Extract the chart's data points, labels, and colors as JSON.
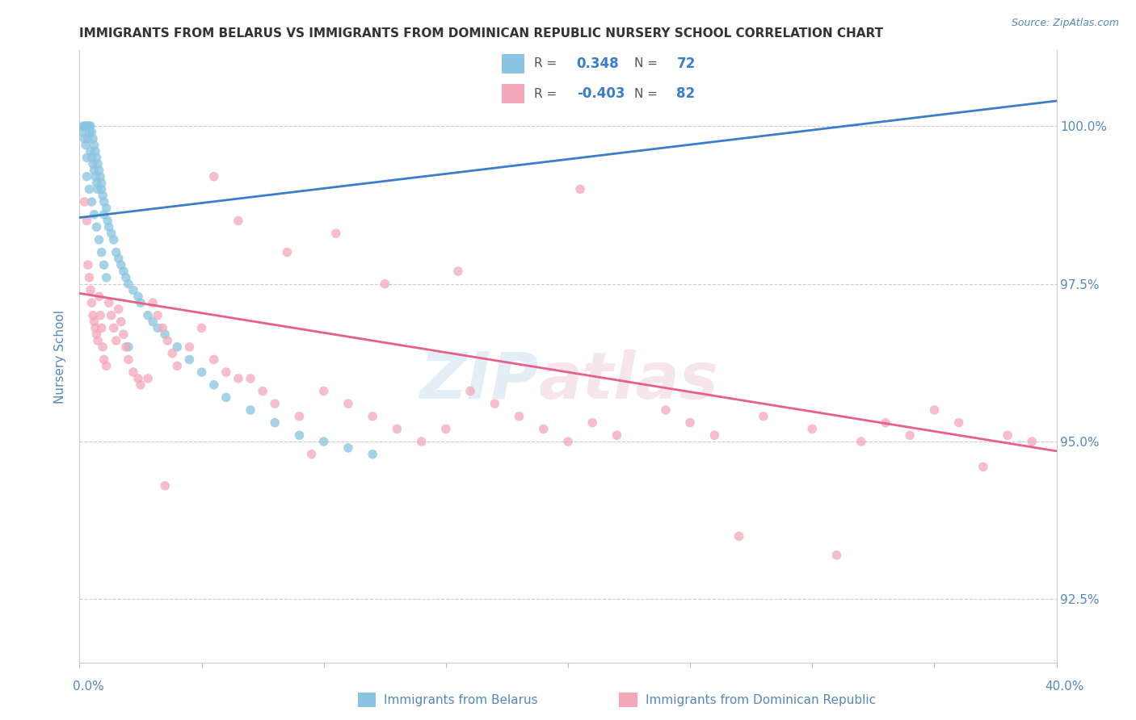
{
  "title": "IMMIGRANTS FROM BELARUS VS IMMIGRANTS FROM DOMINICAN REPUBLIC NURSERY SCHOOL CORRELATION CHART",
  "source": "Source: ZipAtlas.com",
  "ylabel": "Nursery School",
  "yticks": [
    92.5,
    95.0,
    97.5,
    100.0
  ],
  "ytick_labels": [
    "92.5%",
    "95.0%",
    "97.5%",
    "100.0%"
  ],
  "xmin": 0.0,
  "xmax": 40.0,
  "ymin": 91.5,
  "ymax": 101.2,
  "legend_blue_r": "0.348",
  "legend_blue_n": "72",
  "legend_pink_r": "-0.403",
  "legend_pink_n": "82",
  "blue_color": "#89c4e1",
  "pink_color": "#f4a7b9",
  "blue_line_color": "#3a7dc9",
  "pink_line_color": "#e8608a",
  "tick_label_color": "#5588bb",
  "source_color": "#5588bb",
  "axis_label_color": "#5588bb",
  "blue_line_x0": 0.0,
  "blue_line_y0": 98.55,
  "blue_line_x1": 40.0,
  "blue_line_y1": 100.4,
  "pink_line_x0": 0.0,
  "pink_line_y0": 97.35,
  "pink_line_x1": 40.0,
  "pink_line_y1": 94.85,
  "blue_scatter_x": [
    0.1,
    0.15,
    0.2,
    0.2,
    0.25,
    0.25,
    0.3,
    0.3,
    0.35,
    0.35,
    0.4,
    0.4,
    0.45,
    0.45,
    0.5,
    0.5,
    0.55,
    0.55,
    0.6,
    0.6,
    0.65,
    0.65,
    0.7,
    0.7,
    0.75,
    0.75,
    0.8,
    0.85,
    0.9,
    0.9,
    0.95,
    1.0,
    1.0,
    1.1,
    1.15,
    1.2,
    1.3,
    1.4,
    1.5,
    1.6,
    1.7,
    1.8,
    1.9,
    2.0,
    2.2,
    2.4,
    2.5,
    2.8,
    3.0,
    3.2,
    3.5,
    4.0,
    4.5,
    5.0,
    5.5,
    6.0,
    7.0,
    8.0,
    9.0,
    10.0,
    11.0,
    12.0,
    0.3,
    0.4,
    0.5,
    0.6,
    0.7,
    0.8,
    0.9,
    1.0,
    1.1,
    2.0
  ],
  "blue_scatter_y": [
    99.9,
    100.0,
    100.0,
    99.8,
    100.0,
    99.7,
    100.0,
    99.5,
    100.0,
    99.8,
    100.0,
    99.9,
    100.0,
    99.6,
    99.9,
    99.5,
    99.8,
    99.4,
    99.7,
    99.3,
    99.6,
    99.2,
    99.5,
    99.1,
    99.4,
    99.0,
    99.3,
    99.2,
    99.1,
    99.0,
    98.9,
    98.8,
    98.6,
    98.7,
    98.5,
    98.4,
    98.3,
    98.2,
    98.0,
    97.9,
    97.8,
    97.7,
    97.6,
    97.5,
    97.4,
    97.3,
    97.2,
    97.0,
    96.9,
    96.8,
    96.7,
    96.5,
    96.3,
    96.1,
    95.9,
    95.7,
    95.5,
    95.3,
    95.1,
    95.0,
    94.9,
    94.8,
    99.2,
    99.0,
    98.8,
    98.6,
    98.4,
    98.2,
    98.0,
    97.8,
    97.6,
    96.5
  ],
  "pink_scatter_x": [
    0.2,
    0.3,
    0.35,
    0.4,
    0.45,
    0.5,
    0.55,
    0.6,
    0.65,
    0.7,
    0.75,
    0.8,
    0.85,
    0.9,
    0.95,
    1.0,
    1.1,
    1.2,
    1.3,
    1.4,
    1.5,
    1.6,
    1.7,
    1.8,
    1.9,
    2.0,
    2.2,
    2.4,
    2.5,
    2.8,
    3.0,
    3.2,
    3.4,
    3.6,
    3.8,
    4.0,
    4.5,
    5.0,
    5.5,
    6.0,
    6.5,
    7.0,
    7.5,
    8.0,
    9.0,
    10.0,
    11.0,
    12.0,
    13.0,
    14.0,
    15.0,
    16.0,
    17.0,
    18.0,
    19.0,
    20.0,
    21.0,
    22.0,
    24.0,
    25.0,
    26.0,
    28.0,
    30.0,
    32.0,
    33.0,
    34.0,
    35.0,
    36.0,
    38.0,
    39.0,
    5.5,
    6.5,
    8.5,
    10.5,
    12.5,
    15.5,
    20.5,
    27.0,
    31.0,
    37.0,
    3.5,
    9.5
  ],
  "pink_scatter_y": [
    98.8,
    98.5,
    97.8,
    97.6,
    97.4,
    97.2,
    97.0,
    96.9,
    96.8,
    96.7,
    96.6,
    97.3,
    97.0,
    96.8,
    96.5,
    96.3,
    96.2,
    97.2,
    97.0,
    96.8,
    96.6,
    97.1,
    96.9,
    96.7,
    96.5,
    96.3,
    96.1,
    96.0,
    95.9,
    96.0,
    97.2,
    97.0,
    96.8,
    96.6,
    96.4,
    96.2,
    96.5,
    96.8,
    96.3,
    96.1,
    96.0,
    96.0,
    95.8,
    95.6,
    95.4,
    95.8,
    95.6,
    95.4,
    95.2,
    95.0,
    95.2,
    95.8,
    95.6,
    95.4,
    95.2,
    95.0,
    95.3,
    95.1,
    95.5,
    95.3,
    95.1,
    95.4,
    95.2,
    95.0,
    95.3,
    95.1,
    95.5,
    95.3,
    95.1,
    95.0,
    99.2,
    98.5,
    98.0,
    98.3,
    97.5,
    97.7,
    99.0,
    93.5,
    93.2,
    94.6,
    94.3,
    94.8
  ]
}
